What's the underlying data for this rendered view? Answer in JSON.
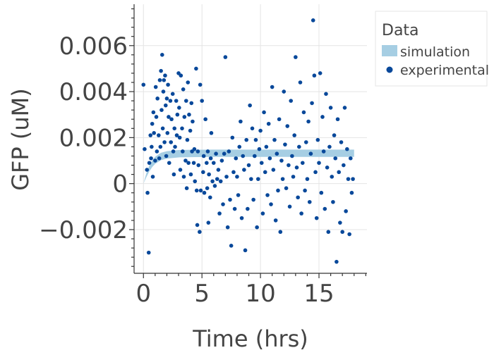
{
  "chart_data": {
    "type": "scatter",
    "title": "",
    "xlabel": "Time (hrs)",
    "ylabel": "GFP (uM)",
    "xlim": [
      -0.8,
      19.1
    ],
    "ylim": [
      -0.0039,
      0.0078
    ],
    "x_ticks": [
      0,
      5,
      10,
      15
    ],
    "x_tick_labels": [
      "0",
      "5",
      "10",
      "15"
    ],
    "y_ticks": [
      -0.002,
      0,
      0.002,
      0.004,
      0.006
    ],
    "y_tick_labels": [
      "−0.002",
      "0",
      "0.002",
      "0.004",
      "0.006"
    ],
    "grid": true,
    "legend": {
      "title": "Data",
      "placement": "right-outside-top",
      "entries": [
        "simulation",
        "experimental"
      ]
    },
    "colors": {
      "simulation": "#a6cee3",
      "experimental": "#08489a"
    },
    "series": [
      {
        "name": "simulation",
        "kind": "band",
        "x": [
          0,
          0.25,
          0.5,
          0.75,
          1.0,
          1.5,
          2.0,
          3.0,
          4.0,
          6.0,
          8.0,
          10.0,
          12.0,
          14.0,
          16.0,
          18.0
        ],
        "y_lower": [
          0.0,
          0.00028,
          0.00053,
          0.00072,
          0.00086,
          0.00102,
          0.00109,
          0.00114,
          0.00115,
          0.00116,
          0.00116,
          0.00116,
          0.00116,
          0.00116,
          0.00116,
          0.00116
        ],
        "y_upper": [
          0.0,
          0.00045,
          0.00078,
          0.00101,
          0.00117,
          0.00134,
          0.00141,
          0.00146,
          0.00147,
          0.00148,
          0.00148,
          0.00148,
          0.00148,
          0.00148,
          0.00148,
          0.00148
        ]
      },
      {
        "name": "experimental",
        "kind": "points",
        "points": [
          [
            0.0,
            0.0043
          ],
          [
            0.1,
            0.0015
          ],
          [
            0.3,
            0.0006
          ],
          [
            0.35,
            -0.0004
          ],
          [
            0.45,
            -0.003
          ],
          [
            0.5,
            0.0009
          ],
          [
            0.6,
            0.0021
          ],
          [
            0.65,
            0.0011
          ],
          [
            0.7,
            0.0016
          ],
          [
            0.75,
            0.0026
          ],
          [
            0.8,
            0.0003
          ],
          [
            0.85,
            0.0031
          ],
          [
            0.9,
            0.0022
          ],
          [
            1.0,
            0.001
          ],
          [
            1.05,
            0.0042
          ],
          [
            1.1,
            0.0029
          ],
          [
            1.15,
            0.0014
          ],
          [
            1.2,
            0.0037
          ],
          [
            1.3,
            0.0021
          ],
          [
            1.35,
            0.0011
          ],
          [
            1.4,
            0.0045
          ],
          [
            1.45,
            0.0016
          ],
          [
            1.5,
            0.0049
          ],
          [
            1.55,
            0.0032
          ],
          [
            1.6,
            0.0056
          ],
          [
            1.65,
            0.0024
          ],
          [
            1.7,
            0.004
          ],
          [
            1.75,
            0.0045
          ],
          [
            1.8,
            0.0018
          ],
          [
            1.85,
            0.0047
          ],
          [
            1.9,
            0.0034
          ],
          [
            1.95,
            0.0012
          ],
          [
            2.0,
            0.0037
          ],
          [
            2.05,
            0.0022
          ],
          [
            2.1,
            0.0043
          ],
          [
            2.15,
            0.0029
          ],
          [
            2.2,
            0.0009
          ],
          [
            2.3,
            0.0036
          ],
          [
            2.35,
            0.0018
          ],
          [
            2.4,
            0.0028
          ],
          [
            2.5,
            0.0039
          ],
          [
            2.55,
            0.0014
          ],
          [
            2.6,
            0.0004
          ],
          [
            2.65,
            0.0024
          ],
          [
            2.7,
            0.0016
          ],
          [
            2.8,
            0.0036
          ],
          [
            2.85,
            0.0021
          ],
          [
            2.9,
            0.003
          ],
          [
            3.0,
            0.0048
          ],
          [
            3.05,
            0.0033
          ],
          [
            3.1,
            0.002
          ],
          [
            3.15,
            0.0006
          ],
          [
            3.2,
            0.0047
          ],
          [
            3.3,
            0.0024
          ],
          [
            3.35,
            0.0014
          ],
          [
            3.4,
            0.0041
          ],
          [
            3.45,
            0.0003
          ],
          [
            3.5,
            0.0029
          ],
          [
            3.6,
            0.001
          ],
          [
            3.65,
            0.0036
          ],
          [
            3.7,
            -0.0002
          ],
          [
            3.75,
            0.0019
          ],
          [
            3.8,
            0.0044
          ],
          [
            3.85,
            0.0009
          ],
          [
            3.9,
            0.003
          ],
          [
            4.0,
            0.0023
          ],
          [
            4.05,
            0.0004
          ],
          [
            4.1,
            0.0035
          ],
          [
            4.15,
            0.0014
          ],
          [
            4.2,
            0.0027
          ],
          [
            4.3,
            0.0009
          ],
          [
            4.35,
            0.0015
          ],
          [
            4.4,
            0.0001
          ],
          [
            4.5,
            0.005
          ],
          [
            4.55,
            -0.0003
          ],
          [
            4.6,
            -0.0018
          ],
          [
            4.65,
            0.0014
          ],
          [
            4.7,
            0.0008
          ],
          [
            4.8,
            -0.0021
          ],
          [
            4.85,
            0.0043
          ],
          [
            4.9,
            -0.0003
          ],
          [
            5.0,
            0.0036
          ],
          [
            5.1,
            0.0005
          ],
          [
            5.15,
            0.0012
          ],
          [
            5.2,
            -0.0004
          ],
          [
            5.3,
            0.0028
          ],
          [
            5.4,
            0.0009
          ],
          [
            5.45,
            -0.0002
          ],
          [
            5.5,
            0.0014
          ],
          [
            5.55,
            -0.0017
          ],
          [
            5.6,
            0.0004
          ],
          [
            5.7,
            -0.0006
          ],
          [
            5.75,
            0.0011
          ],
          [
            5.8,
            0.0022
          ],
          [
            5.9,
            0.0001
          ],
          [
            6.0,
            0.0009
          ],
          [
            6.1,
            -0.0001
          ],
          [
            6.2,
            0.0013
          ],
          [
            6.3,
            0.0002
          ],
          [
            6.4,
            0.0006
          ],
          [
            6.5,
            -0.0013
          ],
          [
            6.6,
            0.0001
          ],
          [
            6.7,
            0.001
          ],
          [
            6.8,
            -0.0009
          ],
          [
            6.9,
            0.0013
          ],
          [
            7.0,
            0.0055
          ],
          [
            7.1,
            0.0003
          ],
          [
            7.2,
            -0.0019
          ],
          [
            7.3,
            0.0014
          ],
          [
            7.4,
            -0.0007
          ],
          [
            7.5,
            -0.0027
          ],
          [
            7.6,
            0.002
          ],
          [
            7.7,
            0.0005
          ],
          [
            7.8,
            -0.0011
          ],
          [
            7.9,
            0.0011
          ],
          [
            8.0,
            0.0003
          ],
          [
            8.1,
            -0.0005
          ],
          [
            8.2,
            0.0016
          ],
          [
            8.3,
            0.0027
          ],
          [
            8.4,
            -0.0015
          ],
          [
            8.5,
            0.0012
          ],
          [
            8.6,
            0.0006
          ],
          [
            8.7,
            -0.0029
          ],
          [
            8.8,
            0.0019
          ],
          [
            8.9,
            -0.0011
          ],
          [
            9.0,
            0.0008
          ],
          [
            9.1,
            0.0034
          ],
          [
            9.2,
            0.0002
          ],
          [
            9.3,
            0.0024
          ],
          [
            9.4,
            -0.0007
          ],
          [
            9.5,
            0.0012
          ],
          [
            9.6,
            0.0019
          ],
          [
            9.7,
            -0.0019
          ],
          [
            9.8,
            0.0002
          ],
          [
            9.9,
            0.0015
          ],
          [
            10.0,
            0.0023
          ],
          [
            10.1,
            0.0009
          ],
          [
            10.2,
            -0.0013
          ],
          [
            10.3,
            0.0031
          ],
          [
            10.4,
            0.0005
          ],
          [
            10.5,
            0.0016
          ],
          [
            10.6,
            -0.0005
          ],
          [
            10.7,
            0.0026
          ],
          [
            10.8,
            0.0011
          ],
          [
            10.9,
            -0.0009
          ],
          [
            11.0,
            0.0042
          ],
          [
            11.1,
            0.0006
          ],
          [
            11.2,
            0.0019
          ],
          [
            11.3,
            -0.0016
          ],
          [
            11.4,
            0.0013
          ],
          [
            11.5,
            -0.0003
          ],
          [
            11.6,
            0.0028
          ],
          [
            11.7,
            -0.0021
          ],
          [
            11.8,
            0.001
          ],
          [
            11.9,
            0.0002
          ],
          [
            12.0,
            0.004
          ],
          [
            12.1,
            0.0017
          ],
          [
            12.2,
            -0.0002
          ],
          [
            12.3,
            0.0025
          ],
          [
            12.4,
            0.0008
          ],
          [
            12.5,
            -0.001
          ],
          [
            12.6,
            0.0036
          ],
          [
            12.7,
            0.0012
          ],
          [
            12.8,
            0.0003
          ],
          [
            12.9,
            0.0021
          ],
          [
            13.0,
            0.0055
          ],
          [
            13.1,
            0.0007
          ],
          [
            13.2,
            -0.0006
          ],
          [
            13.3,
            0.0016
          ],
          [
            13.4,
            0.0044
          ],
          [
            13.5,
            -0.0013
          ],
          [
            13.6,
            0.0009
          ],
          [
            13.7,
            0.0031
          ],
          [
            13.8,
            -0.0003
          ],
          [
            13.9,
            0.0018
          ],
          [
            14.0,
            0.0002
          ],
          [
            14.1,
            0.0027
          ],
          [
            14.2,
            -0.0008
          ],
          [
            14.3,
            0.0013
          ],
          [
            14.4,
            0.0035
          ],
          [
            14.5,
            0.0071
          ],
          [
            14.6,
            0.0047
          ],
          [
            14.7,
            0.0005
          ],
          [
            14.8,
            -0.0015
          ],
          [
            14.9,
            0.0019
          ],
          [
            15.0,
            0.0009
          ],
          [
            15.1,
            0.0048
          ],
          [
            15.2,
            -0.0004
          ],
          [
            15.3,
            0.0029
          ],
          [
            15.4,
            0.0014
          ],
          [
            15.5,
            -0.0011
          ],
          [
            15.6,
            0.0039
          ],
          [
            15.7,
            0.0007
          ],
          [
            15.8,
            -0.0021
          ],
          [
            15.9,
            0.0016
          ],
          [
            16.0,
            0.0033
          ],
          [
            16.1,
            0.0003
          ],
          [
            16.2,
            -0.0008
          ],
          [
            16.3,
            0.0021
          ],
          [
            16.4,
            0.0011
          ],
          [
            16.5,
            -0.0034
          ],
          [
            16.6,
            0.0028
          ],
          [
            16.7,
            0.0005
          ],
          [
            16.8,
            -0.0017
          ],
          [
            16.9,
            0.0018
          ],
          [
            17.0,
            -0.0021
          ],
          [
            17.1,
            0.0008
          ],
          [
            17.2,
            0.0033
          ],
          [
            17.3,
            -0.0012
          ],
          [
            17.4,
            0.0015
          ],
          [
            17.5,
            0.0002
          ],
          [
            17.6,
            -0.0022
          ],
          [
            17.7,
            0.0011
          ],
          [
            17.8,
            -0.0004
          ],
          [
            17.9,
            0.0002
          ]
        ]
      }
    ]
  }
}
